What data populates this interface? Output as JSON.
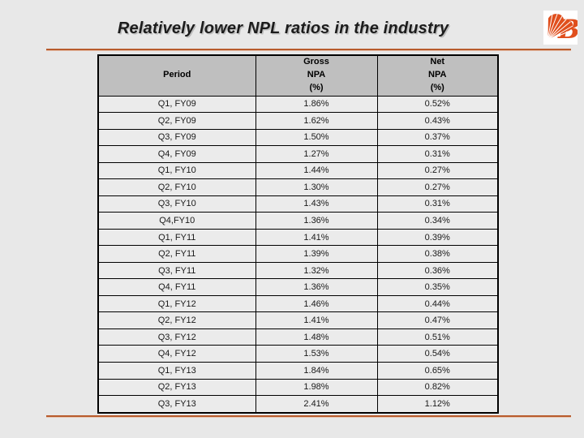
{
  "slide": {
    "title": "Relatively lower NPL ratios in the industry",
    "accent_color": "#b85b2d",
    "logo": {
      "name": "bank-of-baroda-logo",
      "color": "#e04f1d",
      "background": "#ffffff"
    }
  },
  "table": {
    "columns": {
      "period": "Period",
      "gross": "Gross\nNPA\n(%)",
      "net": "Net\nNPA\n(%)"
    },
    "rows": [
      {
        "period": "Q1, FY09",
        "gross": "1.86%",
        "net": "0.52%"
      },
      {
        "period": "Q2, FY09",
        "gross": "1.62%",
        "net": "0.43%"
      },
      {
        "period": "Q3, FY09",
        "gross": "1.50%",
        "net": "0.37%"
      },
      {
        "period": "Q4, FY09",
        "gross": "1.27%",
        "net": "0.31%"
      },
      {
        "period": "Q1, FY10",
        "gross": "1.44%",
        "net": "0.27%"
      },
      {
        "period": "Q2, FY10",
        "gross": "1.30%",
        "net": "0.27%"
      },
      {
        "period": "Q3, FY10",
        "gross": "1.43%",
        "net": "0.31%"
      },
      {
        "period": "Q4,FY10",
        "gross": "1.36%",
        "net": "0.34%"
      },
      {
        "period": "Q1, FY11",
        "gross": "1.41%",
        "net": "0.39%"
      },
      {
        "period": "Q2, FY11",
        "gross": "1.39%",
        "net": "0.38%"
      },
      {
        "period": "Q3, FY11",
        "gross": "1.32%",
        "net": "0.36%"
      },
      {
        "period": "Q4, FY11",
        "gross": "1.36%",
        "net": "0.35%"
      },
      {
        "period": "Q1, FY12",
        "gross": "1.46%",
        "net": "0.44%"
      },
      {
        "period": "Q2, FY12",
        "gross": "1.41%",
        "net": "0.47%"
      },
      {
        "period": "Q3, FY12",
        "gross": "1.48%",
        "net": "0.51%"
      },
      {
        "period": "Q4, FY12",
        "gross": "1.53%",
        "net": "0.54%"
      },
      {
        "period": "Q1, FY13",
        "gross": "1.84%",
        "net": "0.65%"
      },
      {
        "period": "Q2, FY13",
        "gross": "1.98%",
        "net": "0.82%"
      },
      {
        "period": "Q3, FY13",
        "gross": "2.41%",
        "net": "1.12%"
      }
    ]
  }
}
